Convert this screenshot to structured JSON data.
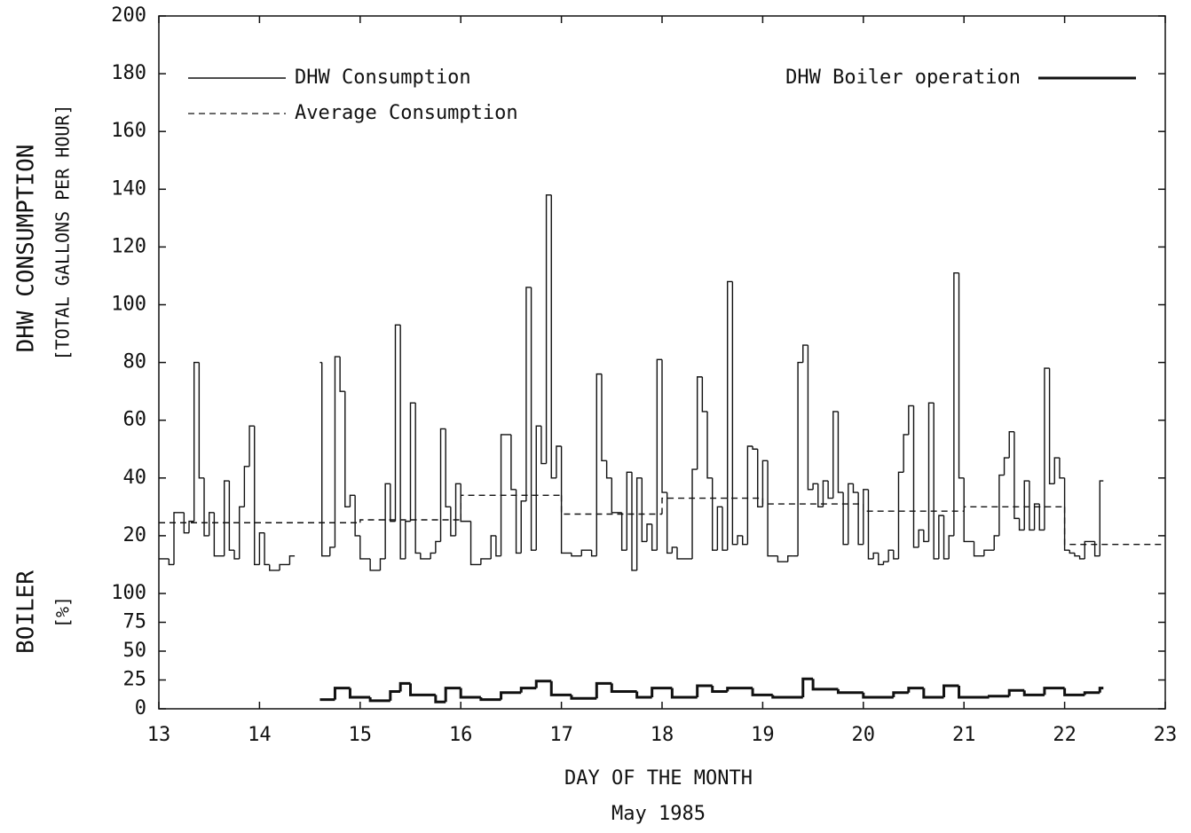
{
  "chart_data": [
    {
      "type": "line",
      "step": true,
      "ylabel": "DHW CONSUMPTION",
      "ylabel2": "[TOTAL GALLONS PER HOUR]",
      "xlim": [
        13,
        23
      ],
      "ylim": [
        0,
        200
      ],
      "yticks": [
        20,
        40,
        60,
        80,
        100,
        120,
        140,
        160,
        180,
        200
      ],
      "series": [
        {
          "name": "DHW Consumption",
          "color": "#111111",
          "dash": false,
          "extend": false,
          "x": [
            13.0,
            13.1,
            13.15,
            13.25,
            13.3,
            13.35,
            13.4,
            13.45,
            13.5,
            13.55,
            13.65,
            13.7,
            13.75,
            13.8,
            13.85,
            13.9,
            13.95,
            14.0,
            14.05,
            14.1,
            14.2,
            14.3,
            14.35,
            14.6,
            14.62,
            14.7,
            14.75,
            14.8,
            14.85,
            14.9,
            14.95,
            15.0,
            15.1,
            15.2,
            15.25,
            15.3,
            15.35,
            15.4,
            15.45,
            15.5,
            15.55,
            15.6,
            15.7,
            15.75,
            15.8,
            15.85,
            15.9,
            15.95,
            16.0,
            16.1,
            16.2,
            16.3,
            16.35,
            16.4,
            16.5,
            16.55,
            16.6,
            16.65,
            16.7,
            16.75,
            16.8,
            16.85,
            16.9,
            16.95,
            17.0,
            17.1,
            17.2,
            17.3,
            17.35,
            17.4,
            17.45,
            17.5,
            17.6,
            17.65,
            17.7,
            17.75,
            17.8,
            17.85,
            17.9,
            17.95,
            18.0,
            18.05,
            18.1,
            18.15,
            18.3,
            18.35,
            18.4,
            18.45,
            18.5,
            18.55,
            18.6,
            18.65,
            18.7,
            18.75,
            18.8,
            18.85,
            18.9,
            18.95,
            19.0,
            19.05,
            19.15,
            19.25,
            19.3,
            19.35,
            19.4,
            19.45,
            19.5,
            19.55,
            19.6,
            19.65,
            19.7,
            19.75,
            19.8,
            19.85,
            19.9,
            19.95,
            20.0,
            20.05,
            20.1,
            20.15,
            20.2,
            20.25,
            20.3,
            20.35,
            20.4,
            20.45,
            20.5,
            20.55,
            20.6,
            20.65,
            20.7,
            20.75,
            20.8,
            20.85,
            20.9,
            20.95,
            21.0,
            21.1,
            21.2,
            21.3,
            21.35,
            21.4,
            21.45,
            21.5,
            21.55,
            21.6,
            21.65,
            21.7,
            21.75,
            21.8,
            21.85,
            21.9,
            21.95,
            22.0,
            22.05,
            22.1,
            22.15,
            22.2,
            22.3,
            22.35
          ],
          "values": [
            12,
            10,
            28,
            21,
            25,
            80,
            40,
            20,
            28,
            13,
            39,
            15,
            12,
            30,
            44,
            58,
            10,
            21,
            10,
            8,
            10,
            13,
            null,
            80,
            13,
            16,
            82,
            70,
            30,
            34,
            20,
            12,
            8,
            12,
            38,
            25,
            93,
            12,
            25,
            66,
            14,
            12,
            14,
            18,
            57,
            30,
            20,
            38,
            25,
            10,
            12,
            20,
            13,
            55,
            36,
            14,
            32,
            106,
            15,
            58,
            45,
            138,
            40,
            51,
            14,
            13,
            15,
            13,
            76,
            46,
            40,
            28,
            15,
            42,
            8,
            40,
            18,
            24,
            15,
            81,
            35,
            14,
            16,
            12,
            43,
            75,
            63,
            40,
            15,
            30,
            15,
            108,
            17,
            20,
            17,
            51,
            50,
            30,
            46,
            13,
            11,
            13,
            13,
            80,
            86,
            36,
            38,
            30,
            39,
            33,
            63,
            35,
            17,
            38,
            35,
            17,
            36,
            12,
            14,
            10,
            11,
            15,
            12,
            42,
            55,
            65,
            16,
            22,
            18,
            66,
            12,
            27,
            12,
            20,
            111,
            40,
            18,
            13,
            15,
            20,
            41,
            47,
            56,
            26,
            22,
            39,
            22,
            31,
            22,
            78,
            38,
            47,
            40,
            15,
            14,
            13,
            12,
            18,
            13,
            39
          ]
        },
        {
          "name": "Average Consumption",
          "color": "#111111",
          "dash": true,
          "extend": true,
          "x": [
            13,
            15,
            16,
            17,
            18,
            19,
            20,
            21,
            22
          ],
          "values": [
            24.5,
            25.5,
            34,
            27.5,
            33,
            31,
            28.5,
            30,
            17
          ]
        }
      ]
    },
    {
      "type": "line",
      "step": true,
      "ylabel": "BOILER",
      "ylabel2": "[%]",
      "xlabel": "DAY OF THE MONTH",
      "subtitle": "May 1985",
      "xlim": [
        13,
        23
      ],
      "xticks": [
        13,
        14,
        15,
        16,
        17,
        18,
        19,
        20,
        21,
        22,
        23
      ],
      "ylim": [
        0,
        100
      ],
      "yticks": [
        0,
        25,
        50,
        75,
        100
      ],
      "series": [
        {
          "name": "DHW Boiler operation",
          "color": "#111111",
          "dash": false,
          "extend": false,
          "width": 3,
          "x": [
            14.6,
            14.75,
            14.9,
            15.1,
            15.3,
            15.4,
            15.5,
            15.75,
            15.85,
            16.0,
            16.2,
            16.4,
            16.6,
            16.75,
            16.9,
            17.1,
            17.35,
            17.5,
            17.75,
            17.9,
            18.1,
            18.35,
            18.5,
            18.65,
            18.9,
            19.1,
            19.4,
            19.5,
            19.75,
            20.0,
            20.3,
            20.45,
            20.6,
            20.8,
            20.95,
            21.25,
            21.45,
            21.6,
            21.8,
            22.0,
            22.2,
            22.35
          ],
          "values": [
            8,
            18,
            10,
            7,
            15,
            22,
            12,
            6,
            18,
            10,
            8,
            14,
            18,
            24,
            12,
            9,
            22,
            15,
            10,
            18,
            10,
            20,
            15,
            18,
            12,
            10,
            26,
            17,
            14,
            10,
            14,
            18,
            10,
            20,
            10,
            11,
            16,
            12,
            18,
            12,
            14,
            18
          ]
        }
      ]
    }
  ]
}
